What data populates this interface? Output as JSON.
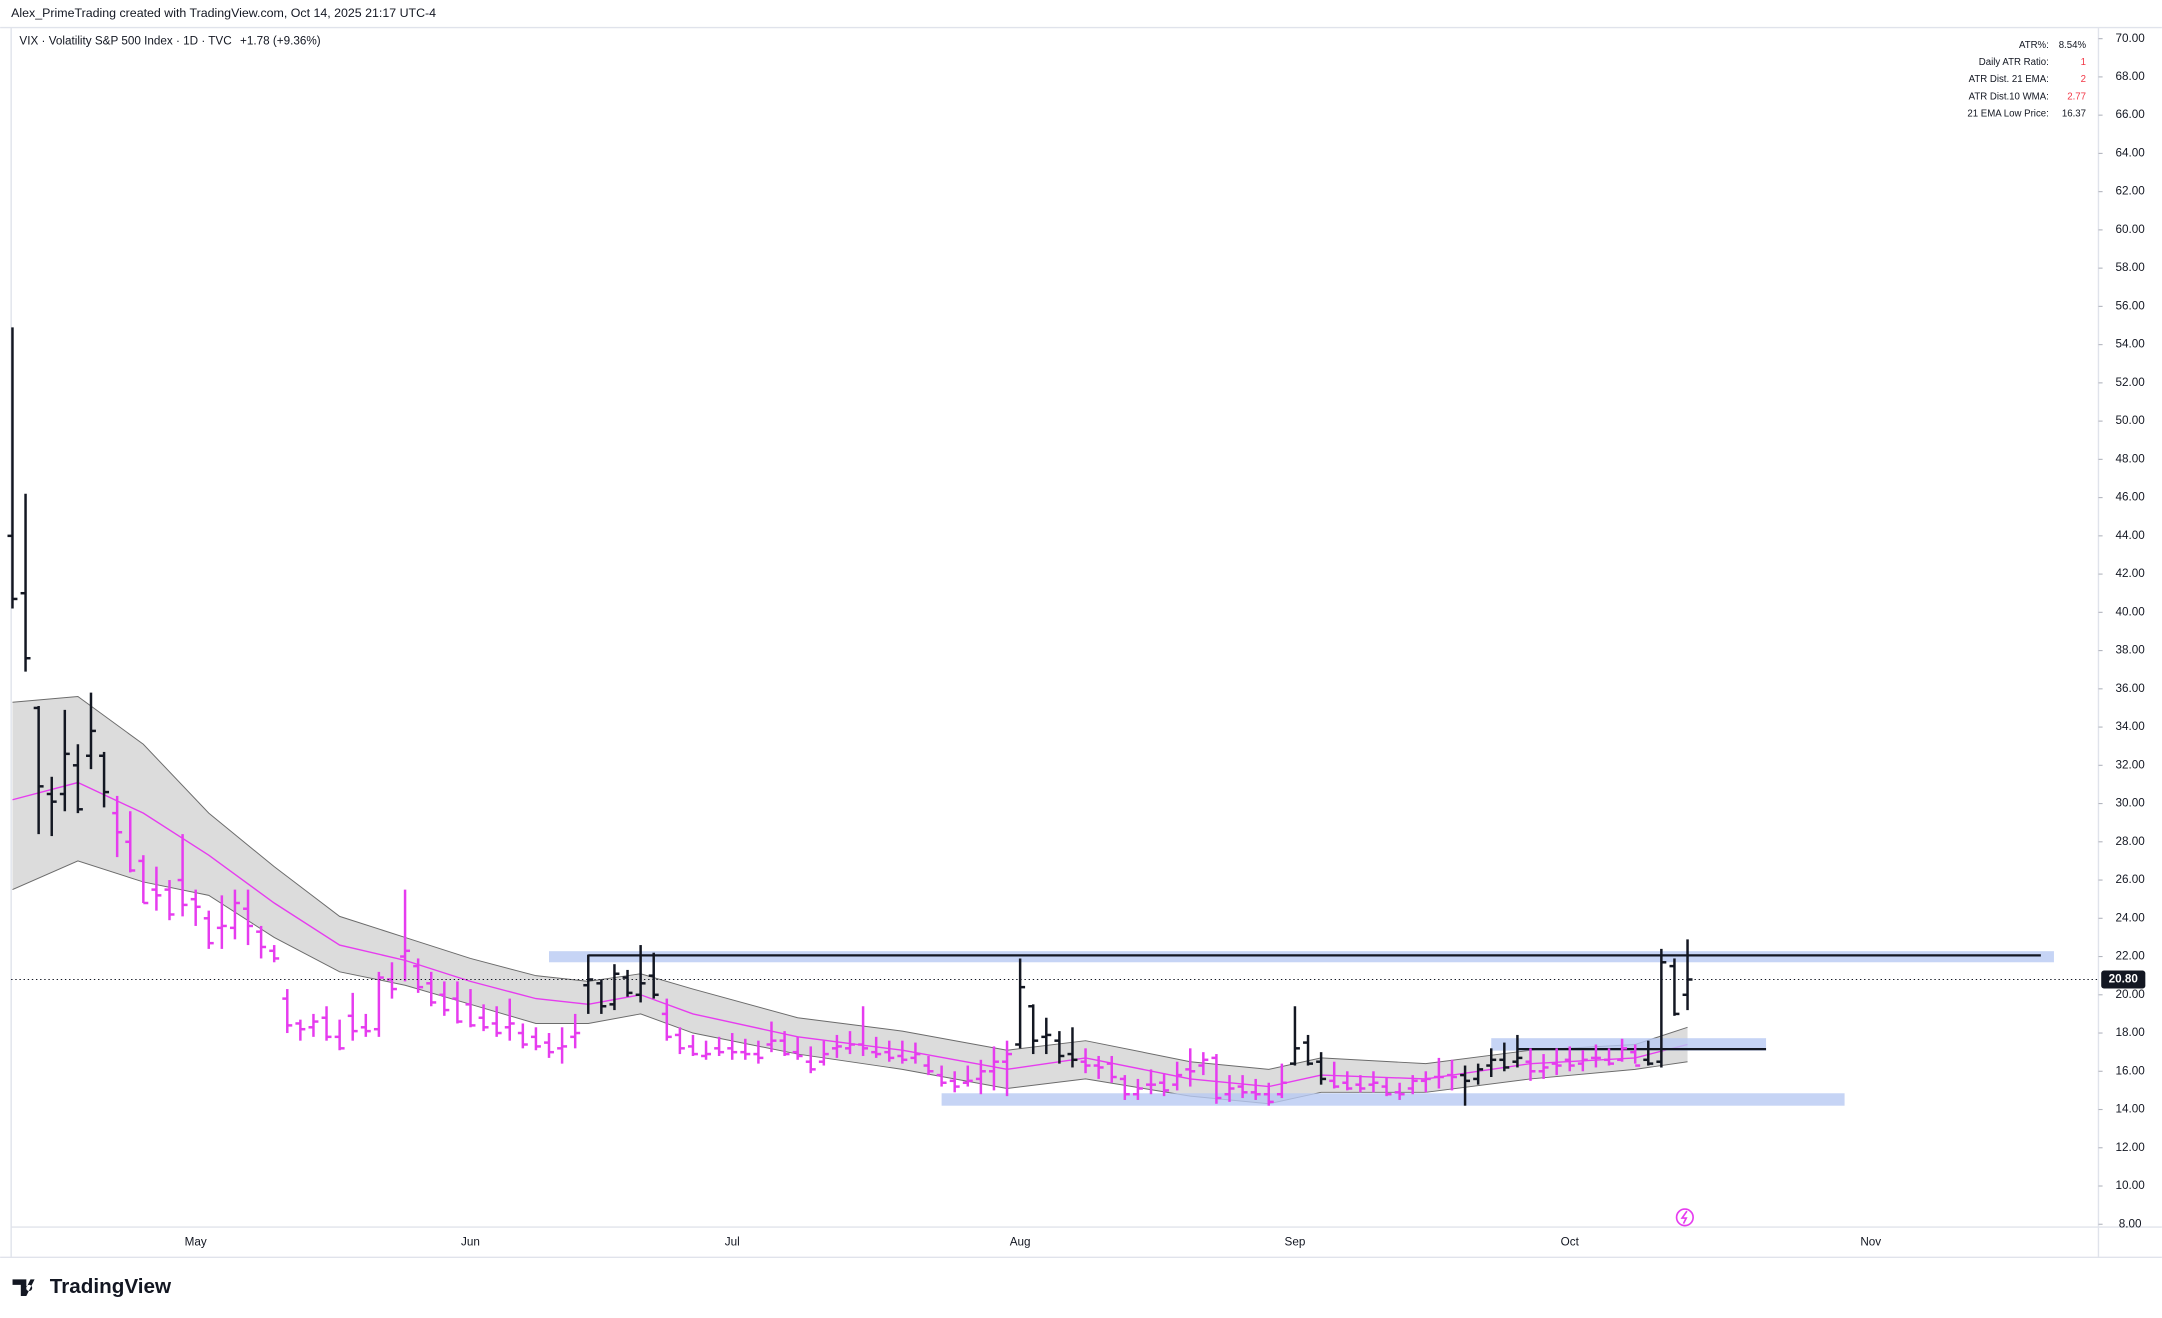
{
  "chart_data": {
    "type": "ohlc",
    "header": "Alex_PrimeTrading created with TradingView.com, Oct 14, 2025 21:17 UTC-4",
    "symbol": "VIX · Volatility S&P 500 Index · 1D · TVC",
    "change": "+1.78 (+9.36%)",
    "brand": "TradingView",
    "indicator_table": [
      {
        "label": "ATR%:",
        "value": "8.54%",
        "color": "#131722"
      },
      {
        "label": "Daily ATR Ratio:",
        "value": "1",
        "color": "#f23645"
      },
      {
        "label": "ATR Dist. 21 EMA:",
        "value": "2",
        "color": "#f23645"
      },
      {
        "label": "ATR Dist.10 WMA:",
        "value": "2.77",
        "color": "#f23645"
      },
      {
        "label": "21 EMA Low Price:",
        "value": "16.37",
        "color": "#131722"
      }
    ],
    "categories": [
      null,
      null,
      null,
      null,
      null,
      null,
      null,
      null,
      null,
      null,
      null,
      null,
      null,
      null,
      "May",
      null,
      null,
      null,
      null,
      null,
      null,
      null,
      null,
      null,
      null,
      null,
      null,
      null,
      null,
      null,
      null,
      null,
      null,
      null,
      null,
      "Jun",
      null,
      null,
      null,
      null,
      null,
      null,
      null,
      null,
      null,
      null,
      null,
      null,
      null,
      null,
      null,
      null,
      null,
      null,
      null,
      "Jul",
      null,
      null,
      null,
      null,
      null,
      null,
      null,
      null,
      null,
      null,
      null,
      null,
      null,
      null,
      null,
      null,
      null,
      null,
      null,
      null,
      null,
      "Aug",
      null,
      null,
      null,
      null,
      null,
      null,
      null,
      null,
      null,
      null,
      null,
      null,
      null,
      null,
      null,
      null,
      null,
      null,
      null,
      null,
      "Sep",
      null,
      null,
      null,
      null,
      null,
      null,
      null,
      null,
      null,
      null,
      null,
      null,
      null,
      null,
      null,
      null,
      null,
      null,
      null,
      null,
      "Oct",
      null,
      null,
      null,
      null,
      null,
      null,
      null,
      null,
      null,
      null,
      null,
      null,
      null,
      null,
      null,
      null,
      null,
      null,
      null,
      null,
      null,
      null,
      "Nov",
      null,
      null,
      null,
      null,
      null,
      null,
      null,
      null,
      null,
      null,
      null,
      null,
      null,
      null,
      null,
      null,
      null
    ],
    "open": [
      44.0,
      41.0,
      35.0,
      30.5,
      30.5,
      32.0,
      32.5,
      32.5,
      29.5,
      28.0,
      27.0,
      25.5,
      25.5,
      26.0,
      25.0,
      24.0,
      23.5,
      23.5,
      24.5,
      23.3,
      22.3,
      19.8,
      18.5,
      18.3,
      18.8,
      17.8,
      18.9,
      18.3,
      18.2,
      20.8,
      22.0,
      21.5,
      20.6,
      20.0,
      19.8,
      19.5,
      18.8,
      18.5,
      18.3,
      18.0,
      17.8,
      17.5,
      17.2,
      17.8,
      20.5,
      20.6,
      19.5,
      20.9,
      20.0,
      21.0,
      19.0,
      17.9,
      17.3,
      16.8,
      17.2,
      17.2,
      17.0,
      16.9,
      17.4,
      17.6,
      17.0,
      16.5,
      16.5,
      17.2,
      17.2,
      17.4,
      17.0,
      17.0,
      16.8,
      16.7,
      16.3,
      15.8,
      15.5,
      15.4,
      15.6,
      16.0,
      16.5,
      17.4,
      19.4,
      17.8,
      17.6,
      16.9,
      16.5,
      16.3,
      16.4,
      15.6,
      14.8,
      15.3,
      15.4,
      15.3,
      16.1,
      16.3,
      16.7,
      14.8,
      15.2,
      14.9,
      14.8,
      14.8,
      16.4,
      17.5,
      16.5,
      15.5,
      15.4,
      15.3,
      15.3,
      15.2,
      14.9,
      15.1,
      15.5,
      15.7,
      15.8,
      15.8,
      15.6,
      16.3,
      16.6,
      16.5,
      16.5,
      16.0,
      16.4,
      16.6,
      16.4,
      16.7,
      16.6,
      16.6,
      17.0,
      16.6,
      16.5,
      21.5,
      20.0,
      null,
      null,
      null,
      null,
      null,
      null,
      null,
      null,
      null,
      null,
      null,
      null,
      null,
      null,
      null,
      null,
      null,
      null,
      null,
      null,
      null,
      null,
      null,
      null,
      null,
      null,
      null,
      null,
      null,
      null,
      null
    ],
    "high": [
      54.9,
      46.2,
      35.1,
      31.4,
      34.9,
      33.1,
      35.8,
      32.7,
      30.4,
      29.6,
      27.3,
      26.7,
      26.0,
      28.4,
      25.5,
      24.4,
      25.2,
      25.5,
      25.5,
      23.6,
      22.6,
      20.3,
      18.7,
      19.0,
      19.4,
      18.7,
      20.1,
      19.0,
      21.2,
      21.7,
      25.5,
      21.9,
      21.2,
      20.7,
      20.7,
      20.3,
      19.5,
      19.4,
      19.8,
      18.5,
      18.3,
      18.0,
      18.3,
      19.0,
      22.1,
      20.8,
      21.6,
      21.3,
      22.6,
      22.2,
      19.8,
      18.3,
      17.9,
      17.6,
      17.8,
      18.0,
      17.7,
      17.6,
      18.6,
      18.1,
      17.8,
      17.3,
      17.6,
      17.9,
      18.1,
      19.4,
      17.8,
      17.6,
      17.6,
      17.5,
      16.8,
      16.3,
      16.0,
      16.3,
      16.6,
      17.3,
      17.6,
      21.9,
      19.5,
      18.8,
      18.1,
      18.3,
      17.2,
      16.8,
      16.8,
      15.8,
      15.6,
      16.1,
      15.9,
      16.5,
      17.2,
      17.0,
      16.9,
      15.8,
      15.8,
      15.6,
      15.4,
      16.4,
      19.4,
      17.9,
      17.0,
      16.5,
      16.0,
      15.8,
      16.0,
      15.7,
      15.4,
      15.8,
      16.0,
      16.7,
      16.6,
      16.3,
      16.4,
      17.2,
      17.5,
      17.9,
      17.2,
      16.9,
      17.2,
      17.3,
      17.1,
      17.4,
      17.2,
      17.7,
      17.4,
      17.6,
      22.4,
      21.9,
      22.9,
      null,
      null,
      null,
      null,
      null,
      null,
      null,
      null,
      null,
      null,
      null,
      null,
      null,
      null,
      null,
      null,
      null,
      null,
      null,
      null,
      null,
      null,
      null,
      null,
      null,
      null,
      null,
      null,
      null,
      null,
      null
    ],
    "low": [
      40.2,
      36.9,
      28.4,
      28.3,
      29.6,
      29.5,
      31.8,
      29.8,
      27.2,
      26.4,
      24.8,
      24.4,
      23.9,
      24.1,
      23.6,
      22.4,
      22.4,
      22.9,
      22.6,
      21.9,
      21.7,
      18.0,
      17.6,
      17.8,
      17.6,
      17.1,
      17.6,
      17.8,
      17.8,
      19.8,
      20.7,
      20.1,
      19.4,
      18.9,
      18.5,
      18.3,
      18.1,
      17.8,
      17.6,
      17.2,
      17.1,
      16.7,
      16.4,
      17.2,
      19.0,
      19.0,
      19.2,
      19.9,
      19.6,
      19.8,
      17.6,
      16.9,
      16.8,
      16.6,
      16.8,
      16.6,
      16.6,
      16.4,
      17.0,
      16.8,
      16.6,
      15.9,
      16.3,
      16.7,
      16.9,
      16.8,
      16.7,
      16.5,
      16.4,
      16.4,
      15.8,
      15.2,
      14.9,
      15.2,
      14.8,
      15.0,
      14.7,
      17.2,
      16.9,
      16.9,
      16.4,
      16.2,
      15.9,
      15.6,
      15.4,
      14.5,
      14.5,
      14.8,
      14.7,
      15.0,
      15.2,
      15.8,
      14.3,
      14.4,
      14.6,
      14.5,
      14.2,
      14.6,
      16.3,
      16.3,
      15.3,
      15.1,
      15.0,
      14.9,
      14.9,
      14.7,
      14.5,
      14.8,
      14.9,
      15.1,
      15.0,
      14.2,
      15.3,
      15.7,
      16.0,
      16.2,
      15.5,
      15.6,
      15.8,
      16.0,
      16.0,
      16.2,
      16.3,
      16.5,
      16.4,
      16.3,
      16.2,
      18.9,
      19.2,
      null,
      null,
      null,
      null,
      null,
      null,
      null,
      null,
      null,
      null,
      null,
      null,
      null,
      null,
      null,
      null,
      null,
      null,
      null,
      null,
      null,
      null,
      null,
      null,
      null,
      null,
      null,
      null,
      null,
      null,
      null
    ],
    "close": [
      40.7,
      37.6,
      30.9,
      30.1,
      32.6,
      29.7,
      33.8,
      30.6,
      28.5,
      26.5,
      24.8,
      25.2,
      24.2,
      24.7,
      24.6,
      22.7,
      23.6,
      24.8,
      23.6,
      22.5,
      21.9,
      18.4,
      18.2,
      18.6,
      17.8,
      17.2,
      18.1,
      18.1,
      20.9,
      20.3,
      22.3,
      20.4,
      19.6,
      19.2,
      18.6,
      18.4,
      18.3,
      18.0,
      18.5,
      17.4,
      17.3,
      17.0,
      17.3,
      18.0,
      20.8,
      19.4,
      21.1,
      20.1,
      20.6,
      20.0,
      17.8,
      17.2,
      16.9,
      16.9,
      17.0,
      17.0,
      16.9,
      16.7,
      17.6,
      16.9,
      16.8,
      16.1,
      16.9,
      17.3,
      17.4,
      17.2,
      16.9,
      16.7,
      16.6,
      16.9,
      16.0,
      15.4,
      15.2,
      15.5,
      16.0,
      16.5,
      16.9,
      20.4,
      17.6,
      17.9,
      16.8,
      16.6,
      16.3,
      16.2,
      15.7,
      14.8,
      15.1,
      15.3,
      15.0,
      15.8,
      16.0,
      16.6,
      14.6,
      15.1,
      14.9,
      14.8,
      14.4,
      15.4,
      17.2,
      16.4,
      15.6,
      15.2,
      15.1,
      15.1,
      15.4,
      14.8,
      14.8,
      15.5,
      15.6,
      15.7,
      15.7,
      15.5,
      16.1,
      16.6,
      16.2,
      16.7,
      16.0,
      16.2,
      16.3,
      16.3,
      16.6,
      16.7,
      16.4,
      17.2,
      16.3,
      16.4,
      21.7,
      19.0,
      20.8,
      null,
      null,
      null,
      null,
      null,
      null,
      null,
      null,
      null,
      null,
      null,
      null,
      null,
      null,
      null,
      null,
      null,
      null,
      null,
      null,
      null,
      null,
      null,
      null,
      null,
      null,
      null,
      null,
      null,
      null,
      null
    ],
    "colors": [
      "#131722",
      "#e63cef"
    ],
    "color_index": [
      0,
      0,
      0,
      0,
      0,
      0,
      0,
      0,
      1,
      1,
      1,
      1,
      1,
      1,
      1,
      1,
      1,
      1,
      1,
      1,
      1,
      1,
      1,
      1,
      1,
      1,
      1,
      1,
      1,
      1,
      1,
      1,
      1,
      1,
      1,
      1,
      1,
      1,
      1,
      1,
      1,
      1,
      1,
      1,
      0,
      0,
      0,
      0,
      0,
      0,
      1,
      1,
      1,
      1,
      1,
      1,
      1,
      1,
      1,
      1,
      1,
      1,
      1,
      1,
      1,
      1,
      1,
      1,
      1,
      1,
      1,
      1,
      1,
      1,
      1,
      1,
      1,
      0,
      0,
      0,
      0,
      0,
      1,
      1,
      1,
      1,
      1,
      1,
      1,
      1,
      1,
      1,
      1,
      1,
      1,
      1,
      1,
      1,
      0,
      0,
      0,
      1,
      1,
      1,
      1,
      1,
      1,
      1,
      1,
      1,
      1,
      0,
      0,
      0,
      0,
      0,
      1,
      1,
      1,
      1,
      1,
      1,
      1,
      1,
      1,
      0,
      0,
      0,
      0,
      null,
      null,
      null,
      null,
      null,
      null,
      null,
      null,
      null,
      null,
      null,
      null,
      null,
      null,
      null,
      null,
      null,
      null,
      null,
      null,
      null,
      null,
      null,
      null,
      null,
      null,
      null,
      null,
      null,
      null,
      null
    ],
    "ema": {
      "color": "#e63cef",
      "band_color": "#d6d6d6",
      "x": [
        0,
        5,
        10,
        15,
        20,
        25,
        30,
        35,
        40,
        44,
        48,
        52,
        60,
        68,
        76,
        82,
        90,
        96,
        100,
        108,
        116,
        124,
        128
      ],
      "values": [
        30.2,
        31.1,
        29.5,
        27.3,
        24.8,
        22.6,
        21.8,
        20.7,
        19.8,
        19.5,
        20.0,
        19.0,
        17.8,
        17.1,
        16.1,
        16.7,
        15.6,
        15.2,
        15.8,
        15.6,
        16.4,
        16.7,
        17.4
      ],
      "upper": [
        35.3,
        35.6,
        33.1,
        29.5,
        26.7,
        24.1,
        23.0,
        21.9,
        21.0,
        20.7,
        21.1,
        20.3,
        18.8,
        18.1,
        17.1,
        17.6,
        16.5,
        16.1,
        16.7,
        16.4,
        17.1,
        17.4,
        18.3
      ],
      "lower": [
        25.5,
        27.0,
        25.9,
        25.2,
        23.0,
        21.2,
        20.5,
        19.5,
        18.5,
        18.5,
        19.0,
        18.0,
        16.9,
        16.1,
        15.1,
        15.6,
        14.7,
        14.3,
        14.9,
        14.9,
        15.6,
        16.1,
        16.5
      ]
    },
    "zone_color": "#b8c9f3",
    "zones": [
      {
        "from": 41,
        "to": 156,
        "top": 22.28,
        "bottom": 21.7,
        "line": 22.06,
        "line_from": 44,
        "line_to": 155
      },
      {
        "from": 71,
        "to": 140,
        "top": 14.85,
        "bottom": 14.2
      },
      {
        "from": 113,
        "to": 134,
        "top": 17.73,
        "bottom": 17.08,
        "line": 17.16,
        "line_from": 115,
        "line_to": 134
      }
    ],
    "last_price": {
      "value": 20.8,
      "label": "20.80"
    },
    "xlim": [
      -0.1,
      159.4
    ],
    "ylim": [
      7.856,
      70.58
    ],
    "yticks": [
      {
        "value": 8,
        "label": "8.00"
      },
      {
        "value": 10,
        "label": "10.00"
      },
      {
        "value": 12,
        "label": "12.00"
      },
      {
        "value": 14,
        "label": "14.00"
      },
      {
        "value": 16,
        "label": "16.00"
      },
      {
        "value": 18,
        "label": "18.00"
      },
      {
        "value": 20,
        "label": "20.00"
      },
      {
        "value": 22,
        "label": "22.00"
      },
      {
        "value": 24,
        "label": "24.00"
      },
      {
        "value": 26,
        "label": "26.00"
      },
      {
        "value": 28,
        "label": "28.00"
      },
      {
        "value": 30,
        "label": "30.00"
      },
      {
        "value": 32,
        "label": "32.00"
      },
      {
        "value": 34,
        "label": "34.00"
      },
      {
        "value": 36,
        "label": "36.00"
      },
      {
        "value": 38,
        "label": "38.00"
      },
      {
        "value": 40,
        "label": "40.00"
      },
      {
        "value": 42,
        "label": "42.00"
      },
      {
        "value": 44,
        "label": "44.00"
      },
      {
        "value": 46,
        "label": "46.00"
      },
      {
        "value": 48,
        "label": "48.00"
      },
      {
        "value": 50,
        "label": "50.00"
      },
      {
        "value": 52,
        "label": "52.00"
      },
      {
        "value": 54,
        "label": "54.00"
      },
      {
        "value": 56,
        "label": "56.00"
      },
      {
        "value": 58,
        "label": "58.00"
      },
      {
        "value": 60,
        "label": "60.00"
      },
      {
        "value": 62,
        "label": "62.00"
      },
      {
        "value": 64,
        "label": "64.00"
      },
      {
        "value": 66,
        "label": "66.00"
      },
      {
        "value": 68,
        "label": "68.00"
      },
      {
        "value": 70,
        "label": "70.00"
      }
    ],
    "grid": false
  }
}
